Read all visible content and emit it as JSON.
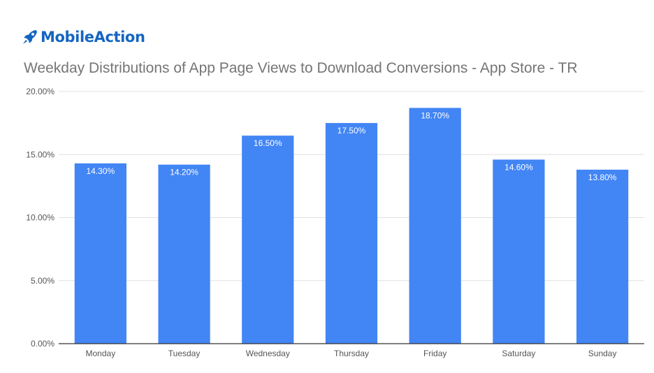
{
  "brand": {
    "name": "MobileAction",
    "color": "#1565c0",
    "icon": "rocket-icon"
  },
  "chart_data": {
    "type": "bar",
    "title": "Weekday Distributions of App Page Views to Download Conversions - App Store - TR",
    "xlabel": "",
    "ylabel": "",
    "categories": [
      "Monday",
      "Tuesday",
      "Wednesday",
      "Thursday",
      "Friday",
      "Saturday",
      "Sunday"
    ],
    "series": [
      {
        "values": [
          14.3,
          14.2,
          16.5,
          17.5,
          18.7,
          14.6,
          13.8
        ]
      }
    ],
    "data_labels": [
      "14.30%",
      "14.20%",
      "16.50%",
      "17.50%",
      "18.70%",
      "14.60%",
      "13.80%"
    ],
    "ylim": [
      0,
      20
    ],
    "yticks": [
      0,
      5,
      10,
      15,
      20
    ],
    "ytick_labels": [
      "0.00%",
      "5.00%",
      "10.00%",
      "15.00%",
      "20.00%"
    ],
    "grid": true,
    "legend": "none",
    "colors": {
      "bar": "#4285f4",
      "grid": "#e0e0e0",
      "axis": "#333333",
      "tick_text": "#555555",
      "label_text": "#ffffff"
    }
  }
}
